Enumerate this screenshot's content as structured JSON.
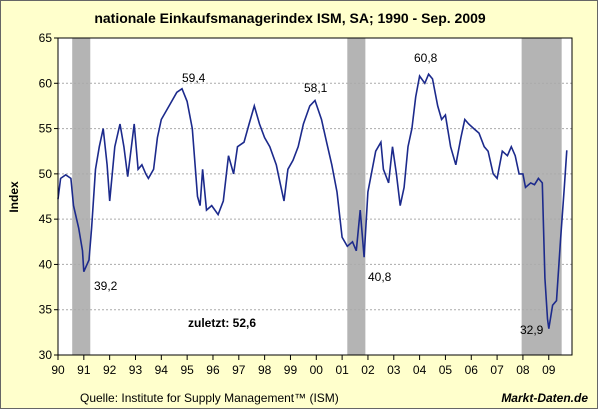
{
  "chart_data": {
    "type": "line",
    "title": "nationale Einkaufsmanagerindex ISM, SA; 1990 - Sep. 2009",
    "y_label": "Index",
    "source": "Quelle: Institute for Supply Management™ (ISM)",
    "brand": "Markt-Daten.de",
    "annotations": [
      "59,4",
      "58,1",
      "60,8",
      "39,2",
      "40,8",
      "32,9",
      "zuletzt: 52,6"
    ],
    "xlim": [
      1990,
      2009.9
    ],
    "ylim": [
      30,
      65
    ],
    "yticks": [
      30,
      35,
      40,
      45,
      50,
      55,
      60,
      65
    ],
    "xticks": [
      {
        "value": 1990,
        "label": "90"
      },
      {
        "value": 1991,
        "label": "91"
      },
      {
        "value": 1992,
        "label": "92"
      },
      {
        "value": 1993,
        "label": "93"
      },
      {
        "value": 1994,
        "label": "94"
      },
      {
        "value": 1995,
        "label": "95"
      },
      {
        "value": 1996,
        "label": "96"
      },
      {
        "value": 1997,
        "label": "97"
      },
      {
        "value": 1998,
        "label": "98"
      },
      {
        "value": 1999,
        "label": "99"
      },
      {
        "value": 2000,
        "label": "00"
      },
      {
        "value": 2001,
        "label": "01"
      },
      {
        "value": 2002,
        "label": "02"
      },
      {
        "value": 2003,
        "label": "03"
      },
      {
        "value": 2004,
        "label": "04"
      },
      {
        "value": 2005,
        "label": "05"
      },
      {
        "value": 2006,
        "label": "06"
      },
      {
        "value": 2007,
        "label": "07"
      },
      {
        "value": 2008,
        "label": "08"
      },
      {
        "value": 2009,
        "label": "09"
      }
    ],
    "grid": true,
    "recessions": [
      [
        1990.55,
        1991.25
      ],
      [
        2001.2,
        2001.9
      ],
      [
        2007.95,
        2009.5
      ]
    ],
    "recession_color": "#b4b4b4",
    "series": [
      {
        "name": "ISM",
        "color": "#1c2a8c",
        "x": [
          1990.0,
          1990.1,
          1990.3,
          1990.5,
          1990.6,
          1990.8,
          1990.95,
          1991.0,
          1991.2,
          1991.3,
          1991.45,
          1991.6,
          1991.75,
          1991.9,
          1992.0,
          1992.2,
          1992.4,
          1992.55,
          1992.7,
          1992.8,
          1992.95,
          1993.1,
          1993.25,
          1993.4,
          1993.5,
          1993.7,
          1993.85,
          1994.0,
          1994.3,
          1994.6,
          1994.8,
          1995.0,
          1995.2,
          1995.4,
          1995.5,
          1995.6,
          1995.75,
          1995.95,
          1996.2,
          1996.4,
          1996.6,
          1996.8,
          1996.95,
          1997.2,
          1997.4,
          1997.6,
          1997.8,
          1998.0,
          1998.2,
          1998.45,
          1998.6,
          1998.75,
          1998.9,
          1999.1,
          1999.3,
          1999.5,
          1999.75,
          1999.95,
          2000.2,
          2000.4,
          2000.6,
          2000.8,
          2001.0,
          2001.2,
          2001.4,
          2001.55,
          2001.7,
          2001.85,
          2002.0,
          2002.3,
          2002.5,
          2002.6,
          2002.8,
          2002.95,
          2003.1,
          2003.25,
          2003.4,
          2003.55,
          2003.7,
          2003.85,
          2004.0,
          2004.2,
          2004.35,
          2004.5,
          2004.7,
          2004.85,
          2005.0,
          2005.2,
          2005.4,
          2005.6,
          2005.75,
          2005.9,
          2006.1,
          2006.3,
          2006.5,
          2006.65,
          2006.85,
          2007.0,
          2007.2,
          2007.4,
          2007.55,
          2007.7,
          2007.85,
          2008.0,
          2008.1,
          2008.3,
          2008.45,
          2008.6,
          2008.75,
          2008.85,
          2008.95,
          2009.0,
          2009.15,
          2009.3,
          2009.45,
          2009.6,
          2009.7
        ],
        "values": [
          47.2,
          49.5,
          49.9,
          49.5,
          46.5,
          44,
          41.5,
          39.2,
          40.5,
          44,
          50.5,
          53,
          55,
          51,
          47,
          53,
          55.5,
          53,
          49.7,
          52,
          55.5,
          50.5,
          51,
          50,
          49.5,
          50.5,
          54,
          56,
          57.5,
          59,
          59.4,
          58,
          55,
          47.5,
          46.5,
          50.5,
          46,
          46.5,
          45.5,
          47,
          52,
          50,
          53,
          53.5,
          55.5,
          57.5,
          55.5,
          54,
          53,
          51,
          49,
          47,
          50.5,
          51.5,
          53,
          55.5,
          57.5,
          58.1,
          56,
          53.5,
          51,
          48,
          43,
          42,
          42.5,
          41.5,
          46,
          40.8,
          48,
          52.5,
          53.5,
          50.5,
          49,
          53,
          50,
          46.5,
          48.5,
          53,
          55,
          58.5,
          60.8,
          60,
          61,
          60.5,
          57.5,
          56,
          56.5,
          53,
          51,
          54,
          56,
          55.5,
          55,
          54.5,
          53,
          52.5,
          50,
          49.5,
          52.5,
          52,
          53,
          52,
          50,
          50,
          48.5,
          49,
          48.8,
          49.5,
          49,
          38.5,
          34,
          32.9,
          35.5,
          36,
          42.5,
          48.5,
          52.6
        ]
      }
    ]
  }
}
